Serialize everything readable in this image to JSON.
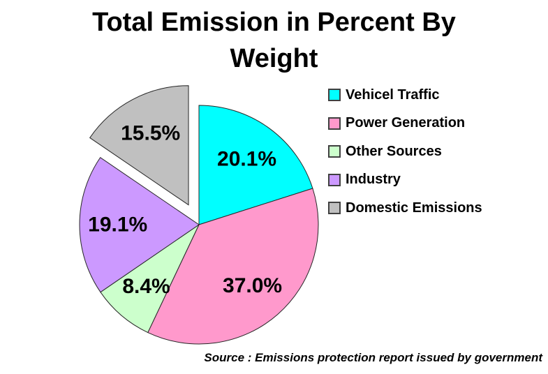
{
  "title_lines": [
    "Total Emission in Percent By",
    "Weight"
  ],
  "source_note": "Source : Emissions protection report issued by government",
  "chart_data": {
    "type": "pie",
    "title": "Total Emission in Percent By Weight",
    "legend_position": "right",
    "start_angle_deg": 0,
    "direction": "clockwise",
    "slice_border_color": "#262626",
    "label_color": "#000000",
    "source": "Source : Emissions protection report issued by government",
    "slices": [
      {
        "label": "Vehicel Traffic",
        "value": 20.1,
        "display": "20.1%",
        "color": "#00FFFF",
        "exploded": false
      },
      {
        "label": "Power Generation",
        "value": 37.0,
        "display": "37.0%",
        "color": "#FF99CC",
        "exploded": false
      },
      {
        "label": "Other Sources",
        "value": 8.4,
        "display": "8.4%",
        "color": "#CCFFCC",
        "exploded": false
      },
      {
        "label": "Industry",
        "value": 19.1,
        "display": "19.1%",
        "color": "#CC99FF",
        "exploded": false
      },
      {
        "label": "Domestic Emissions",
        "value": 15.5,
        "display": "15.5%",
        "color": "#C0C0C0",
        "exploded": true
      }
    ]
  }
}
